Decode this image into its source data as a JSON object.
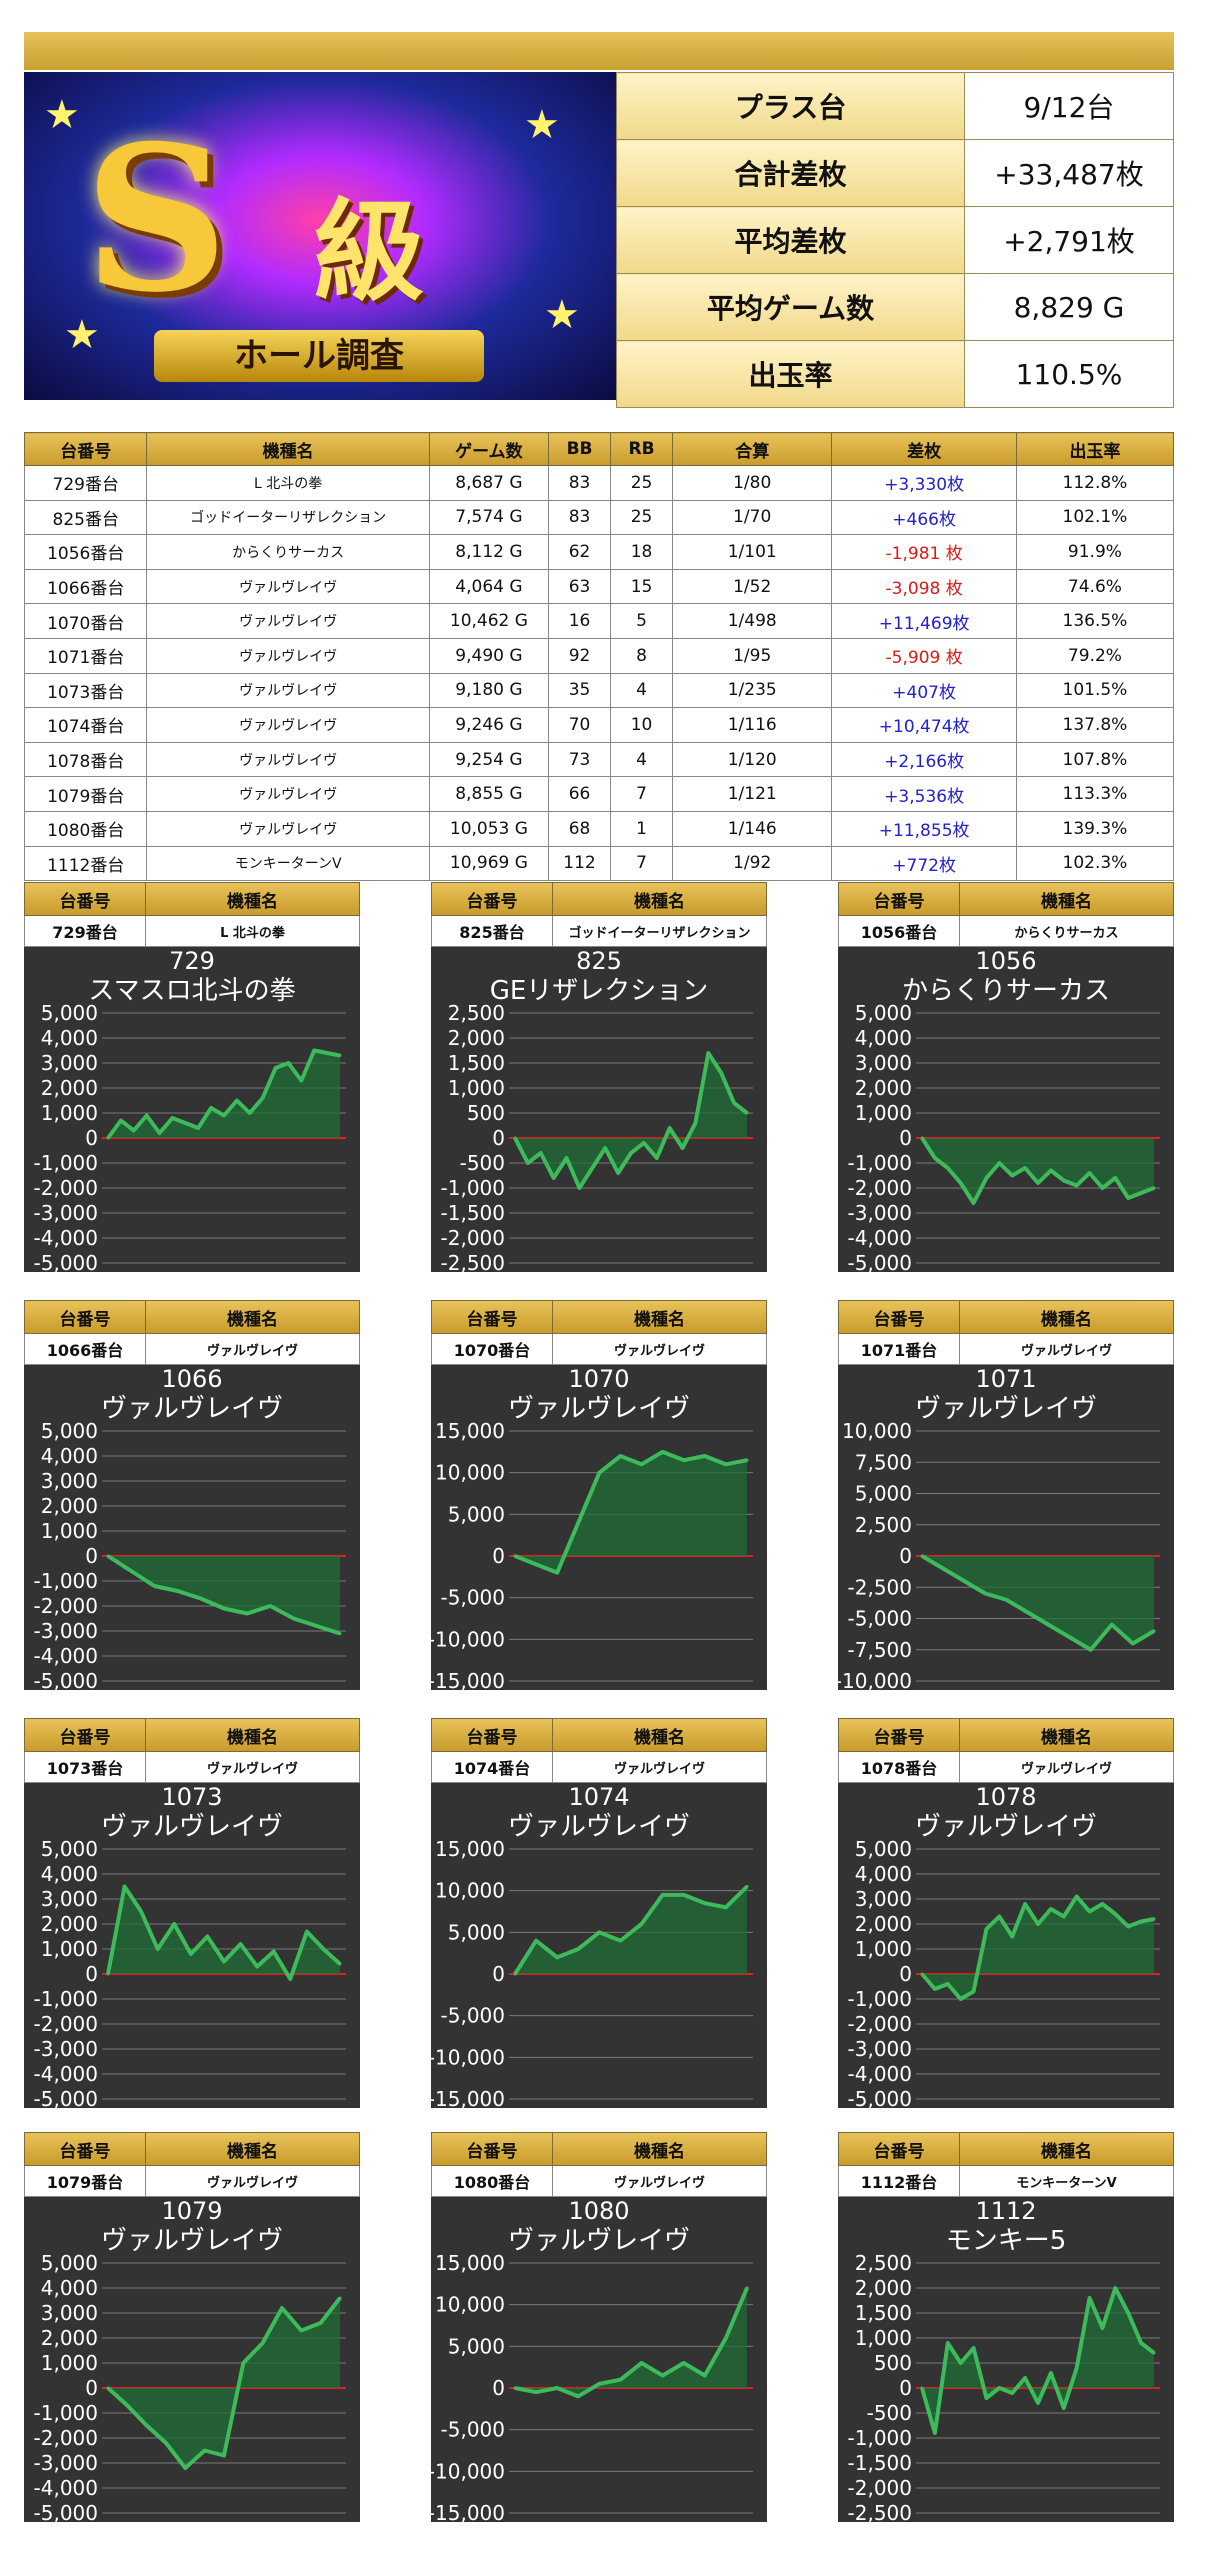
{
  "banner": {
    "s_letter": "S",
    "kyu": "級",
    "ribbon": "ホール調査"
  },
  "summary": [
    {
      "label": "プラス台",
      "value": "9/12台"
    },
    {
      "label": "合計差枚",
      "value": "+33,487枚"
    },
    {
      "label": "平均差枚",
      "value": "+2,791枚"
    },
    {
      "label": "平均ゲーム数",
      "value": "8,829 G"
    },
    {
      "label": "出玉率",
      "value": "110.5%"
    }
  ],
  "table": {
    "headers": [
      "台番号",
      "機種名",
      "ゲーム数",
      "BB",
      "RB",
      "合算",
      "差枚",
      "出玉率"
    ],
    "rows": [
      [
        "729番台",
        "L 北斗の拳",
        "8,687 G",
        "83",
        "25",
        "1/80",
        "+3,330枚",
        "112.8%"
      ],
      [
        "825番台",
        "ゴッドイーターリザレクション",
        "7,574 G",
        "83",
        "25",
        "1/70",
        "+466枚",
        "102.1%"
      ],
      [
        "1056番台",
        "からくりサーカス",
        "8,112 G",
        "62",
        "18",
        "1/101",
        "-1,981 枚",
        "91.9%"
      ],
      [
        "1066番台",
        "ヴァルヴレイヴ",
        "4,064 G",
        "63",
        "15",
        "1/52",
        "-3,098 枚",
        "74.6%"
      ],
      [
        "1070番台",
        "ヴァルヴレイヴ",
        "10,462 G",
        "16",
        "5",
        "1/498",
        "+11,469枚",
        "136.5%"
      ],
      [
        "1071番台",
        "ヴァルヴレイヴ",
        "9,490 G",
        "92",
        "8",
        "1/95",
        "-5,909 枚",
        "79.2%"
      ],
      [
        "1073番台",
        "ヴァルヴレイヴ",
        "9,180 G",
        "35",
        "4",
        "1/235",
        "+407枚",
        "101.5%"
      ],
      [
        "1074番台",
        "ヴァルヴレイヴ",
        "9,246 G",
        "70",
        "10",
        "1/116",
        "+10,474枚",
        "137.8%"
      ],
      [
        "1078番台",
        "ヴァルヴレイヴ",
        "9,254 G",
        "73",
        "4",
        "1/120",
        "+2,166枚",
        "107.8%"
      ],
      [
        "1079番台",
        "ヴァルヴレイヴ",
        "8,855 G",
        "66",
        "7",
        "1/121",
        "+3,536枚",
        "113.3%"
      ],
      [
        "1080番台",
        "ヴァルヴレイヴ",
        "10,053 G",
        "68",
        "1",
        "1/146",
        "+11,855枚",
        "139.3%"
      ],
      [
        "1112番台",
        "モンキーターンV",
        "10,969 G",
        "112",
        "7",
        "1/92",
        "+772枚",
        "102.3%"
      ]
    ]
  },
  "card_headers": {
    "a": "台番号",
    "b": "機種名"
  },
  "colors": {
    "positive": "#2222cc",
    "negative": "#d81b1b",
    "line": "#3dbb5a",
    "fill": "#1f6e35",
    "zero": "#e02020"
  },
  "chart_data": [
    {
      "type": "area",
      "unit": "729",
      "machine": "L 北斗の拳",
      "title1": "729",
      "title2": "スマスロ北斗の拳",
      "ylim": [
        -5000,
        5000
      ],
      "ticks": [
        5000,
        4000,
        3000,
        2000,
        1000,
        0,
        -1000,
        -2000,
        -3000,
        -4000,
        -5000
      ],
      "tick_labels": [
        "5,000",
        "4,000",
        "3,000",
        "2,000",
        "1,000",
        "0",
        "-1,000",
        "-2,000",
        "-3,000",
        "-4,000",
        "-5,000"
      ],
      "values": [
        0,
        700,
        300,
        900,
        200,
        800,
        600,
        400,
        1200,
        900,
        1500,
        1000,
        1600,
        2800,
        3000,
        2300,
        3500,
        3400,
        3300
      ]
    },
    {
      "type": "area",
      "unit": "825",
      "machine": "ゴッドイーターリザレクション",
      "title1": "825",
      "title2": "GEリザレクション",
      "ylim": [
        -2500,
        2500
      ],
      "ticks": [
        2500,
        2000,
        1500,
        1000,
        500,
        0,
        -500,
        -1000,
        -1500,
        -2000,
        -2500
      ],
      "tick_labels": [
        "2,500",
        "2,000",
        "1,500",
        "1,000",
        "500",
        "0",
        "-500",
        "-1,000",
        "-1,500",
        "-2,000",
        "-2,500"
      ],
      "values": [
        0,
        -500,
        -300,
        -800,
        -400,
        -1000,
        -600,
        -200,
        -700,
        -300,
        -100,
        -400,
        200,
        -200,
        300,
        1700,
        1300,
        700,
        500
      ]
    },
    {
      "type": "area",
      "unit": "1056",
      "machine": "からくりサーカス",
      "title1": "1056",
      "title2": "からくりサーカス",
      "ylim": [
        -5000,
        5000
      ],
      "ticks": [
        5000,
        4000,
        3000,
        2000,
        1000,
        0,
        -1000,
        -2000,
        -3000,
        -4000,
        -5000
      ],
      "tick_labels": [
        "5,000",
        "4,000",
        "3,000",
        "2,000",
        "1,000",
        "0",
        "-1,000",
        "-2,000",
        "-3,000",
        "-4,000",
        "-5,000"
      ],
      "values": [
        0,
        -800,
        -1200,
        -1800,
        -2600,
        -1600,
        -1000,
        -1500,
        -1200,
        -1800,
        -1300,
        -1700,
        -1900,
        -1400,
        -2000,
        -1600,
        -2400,
        -2200,
        -2000
      ]
    },
    {
      "type": "area",
      "unit": "1066",
      "machine": "ヴァルヴレイヴ",
      "title1": "1066",
      "title2": "ヴァルヴレイヴ",
      "ylim": [
        -5000,
        5000
      ],
      "ticks": [
        5000,
        4000,
        3000,
        2000,
        1000,
        0,
        -1000,
        -2000,
        -3000,
        -4000,
        -5000
      ],
      "tick_labels": [
        "5,000",
        "4,000",
        "3,000",
        "2,000",
        "1,000",
        "0",
        "-1,000",
        "-2,000",
        "-3,000",
        "-4,000",
        "-5,000"
      ],
      "values": [
        0,
        -600,
        -1200,
        -1400,
        -1700,
        -2100,
        -2300,
        -2000,
        -2500,
        -2800,
        -3100
      ]
    },
    {
      "type": "area",
      "unit": "1070",
      "machine": "ヴァルヴレイヴ",
      "title1": "1070",
      "title2": "ヴァルヴレイヴ",
      "ylim": [
        -15000,
        15000
      ],
      "ticks": [
        15000,
        10000,
        5000,
        0,
        -5000,
        -10000,
        -15000
      ],
      "tick_labels": [
        "15,000",
        "10,000",
        "5,000",
        "0",
        "-5,000",
        "-10,000",
        "-15,000"
      ],
      "values": [
        0,
        -1000,
        -2000,
        4000,
        10000,
        12000,
        11000,
        12500,
        11500,
        12000,
        11000,
        11500
      ]
    },
    {
      "type": "area",
      "unit": "1071",
      "machine": "ヴァルヴレイヴ",
      "title1": "1071",
      "title2": "ヴァルヴレイヴ",
      "ylim": [
        -10000,
        10000
      ],
      "ticks": [
        10000,
        7500,
        5000,
        2500,
        0,
        -2500,
        -5000,
        -7500,
        -10000
      ],
      "tick_labels": [
        "10,000",
        "7,500",
        "5,000",
        "2,500",
        "0",
        "-2,500",
        "-5,000",
        "-7,500",
        "-10,000"
      ],
      "values": [
        0,
        -1000,
        -2000,
        -3000,
        -3500,
        -4500,
        -5500,
        -6500,
        -7500,
        -5500,
        -7000,
        -6000
      ]
    },
    {
      "type": "area",
      "unit": "1073",
      "machine": "ヴァルヴレイヴ",
      "title1": "1073",
      "title2": "ヴァルヴレイヴ",
      "ylim": [
        -5000,
        5000
      ],
      "ticks": [
        5000,
        4000,
        3000,
        2000,
        1000,
        0,
        -1000,
        -2000,
        -3000,
        -4000,
        -5000
      ],
      "tick_labels": [
        "5,000",
        "4,000",
        "3,000",
        "2,000",
        "1,000",
        "0",
        "-1,000",
        "-2,000",
        "-3,000",
        "-4,000",
        "-5,000"
      ],
      "values": [
        0,
        3500,
        2500,
        1000,
        2000,
        800,
        1500,
        500,
        1200,
        300,
        900,
        -200,
        1700,
        1000,
        400
      ]
    },
    {
      "type": "area",
      "unit": "1074",
      "machine": "ヴァルヴレイヴ",
      "title1": "1074",
      "title2": "ヴァルヴレイヴ",
      "ylim": [
        -15000,
        15000
      ],
      "ticks": [
        15000,
        10000,
        5000,
        0,
        -5000,
        -10000,
        -15000
      ],
      "tick_labels": [
        "15,000",
        "10,000",
        "5,000",
        "0",
        "-5,000",
        "-10,000",
        "-15,000"
      ],
      "values": [
        0,
        4000,
        2000,
        3000,
        5000,
        4000,
        6000,
        9500,
        9500,
        8500,
        8000,
        10500
      ]
    },
    {
      "type": "area",
      "unit": "1078",
      "machine": "ヴァルヴレイヴ",
      "title1": "1078",
      "title2": "ヴァルヴレイヴ",
      "ylim": [
        -5000,
        5000
      ],
      "ticks": [
        5000,
        4000,
        3000,
        2000,
        1000,
        0,
        -1000,
        -2000,
        -3000,
        -4000,
        -5000
      ],
      "tick_labels": [
        "5,000",
        "4,000",
        "3,000",
        "2,000",
        "1,000",
        "0",
        "-1,000",
        "-2,000",
        "-3,000",
        "-4,000",
        "-5,000"
      ],
      "values": [
        0,
        -600,
        -400,
        -1000,
        -700,
        1800,
        2300,
        1500,
        2800,
        2000,
        2600,
        2300,
        3100,
        2500,
        2800,
        2400,
        1900,
        2100,
        2200
      ]
    },
    {
      "type": "area",
      "unit": "1079",
      "machine": "ヴァルヴレイヴ",
      "title1": "1079",
      "title2": "ヴァルヴレイヴ",
      "ylim": [
        -5000,
        5000
      ],
      "ticks": [
        5000,
        4000,
        3000,
        2000,
        1000,
        0,
        -1000,
        -2000,
        -3000,
        -4000,
        -5000
      ],
      "tick_labels": [
        "5,000",
        "4,000",
        "3,000",
        "2,000",
        "1,000",
        "0",
        "-1,000",
        "-2,000",
        "-3,000",
        "-4,000",
        "-5,000"
      ],
      "values": [
        0,
        -700,
        -1500,
        -2200,
        -3200,
        -2500,
        -2700,
        1000,
        1800,
        3200,
        2300,
        2600,
        3600
      ]
    },
    {
      "type": "area",
      "unit": "1080",
      "machine": "ヴァルヴレイヴ",
      "title1": "1080",
      "title2": "ヴァルヴレイヴ",
      "ylim": [
        -15000,
        15000
      ],
      "ticks": [
        15000,
        10000,
        5000,
        0,
        -5000,
        -10000,
        -15000
      ],
      "tick_labels": [
        "15,000",
        "10,000",
        "5,000",
        "0",
        "-5,000",
        "-10,000",
        "-15,000"
      ],
      "values": [
        0,
        -500,
        0,
        -1000,
        500,
        1000,
        3000,
        1500,
        3000,
        1500,
        6000,
        12000
      ]
    },
    {
      "type": "area",
      "unit": "1112",
      "machine": "モンキーターンV",
      "title1": "1112",
      "title2": "モンキー5",
      "ylim": [
        -2500,
        2500
      ],
      "ticks": [
        2500,
        2000,
        1500,
        1000,
        500,
        0,
        -500,
        -1000,
        -1500,
        -2000,
        -2500
      ],
      "tick_labels": [
        "2,500",
        "2,000",
        "1,500",
        "1,000",
        "500",
        "0",
        "-500",
        "-1,000",
        "-1,500",
        "-2,000",
        "-2,500"
      ],
      "values": [
        0,
        -900,
        900,
        500,
        800,
        -200,
        0,
        -100,
        200,
        -300,
        300,
        -400,
        400,
        1800,
        1200,
        2000,
        1500,
        900,
        700
      ]
    }
  ]
}
